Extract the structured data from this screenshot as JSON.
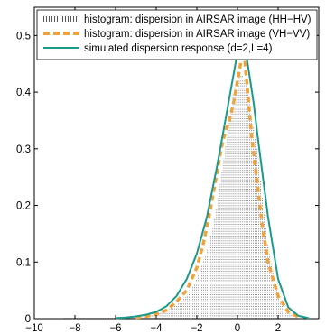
{
  "chart_data": {
    "type": "line",
    "xlim": [
      -10,
      4
    ],
    "ylim": [
      0,
      0.55
    ],
    "xticks": [
      -10,
      -8,
      -6,
      -4,
      -2,
      0,
      2
    ],
    "xtick_labels": [
      "−10",
      "−8",
      "−6",
      "−4",
      "−2",
      "0",
      "2"
    ],
    "yticks": [
      0,
      0.1,
      0.2,
      0.3,
      0.4,
      0.5
    ],
    "ytick_labels": [
      "0",
      "0.1",
      "0.2",
      "0.3",
      "0.4",
      "0.5"
    ],
    "grid": false,
    "legend_position": "top",
    "series": [
      {
        "name": "histogram: dispersion in AIRSAR image (HH−HV)",
        "style": "stems",
        "color": "#555555",
        "x": [
          -8.5,
          -8.0,
          -7.5,
          -7.0,
          -6.5,
          -6.0,
          -5.5,
          -5.0,
          -4.5,
          -4.0,
          -3.5,
          -3.0,
          -2.5,
          -2.0,
          -1.5,
          -1.2,
          -1.0,
          -0.8,
          -0.6,
          -0.4,
          -0.2,
          0.0,
          0.2,
          0.4,
          0.6,
          0.8,
          1.0,
          1.2,
          1.5,
          2.0,
          2.5,
          3.0
        ],
        "y": [
          0.002,
          0.002,
          0.002,
          0.002,
          0.003,
          0.003,
          0.004,
          0.005,
          0.007,
          0.01,
          0.015,
          0.025,
          0.04,
          0.07,
          0.12,
          0.16,
          0.2,
          0.25,
          0.3,
          0.35,
          0.4,
          0.43,
          0.43,
          0.42,
          0.38,
          0.33,
          0.29,
          0.22,
          0.13,
          0.04,
          0.01,
          0.003
        ]
      },
      {
        "name": "histogram: dispersion in AIRSAR image (VH−VV)",
        "style": "dashed",
        "color": "#f2a23c",
        "x": [
          -5.0,
          -4.5,
          -4.0,
          -3.5,
          -3.0,
          -2.5,
          -2.0,
          -1.7,
          -1.4,
          -1.1,
          -0.8,
          -0.6,
          -0.4,
          -0.2,
          0.0,
          0.1,
          0.2,
          0.3,
          0.4,
          0.5,
          0.7,
          0.9,
          1.2,
          1.5,
          2.0,
          2.5,
          3.0
        ],
        "y": [
          0.002,
          0.004,
          0.008,
          0.015,
          0.03,
          0.05,
          0.09,
          0.13,
          0.18,
          0.24,
          0.3,
          0.33,
          0.35,
          0.38,
          0.42,
          0.44,
          0.46,
          0.48,
          0.44,
          0.4,
          0.32,
          0.26,
          0.17,
          0.1,
          0.04,
          0.012,
          0.003
        ]
      },
      {
        "name": "simulated dispersion response (d=2,L=4)",
        "style": "solid",
        "color": "#1a9a8a",
        "x": [
          -6.0,
          -5.5,
          -5.0,
          -4.5,
          -4.0,
          -3.5,
          -3.0,
          -2.5,
          -2.0,
          -1.5,
          -1.0,
          -0.5,
          -0.2,
          0.0,
          0.1,
          0.2,
          0.3,
          0.5,
          0.8,
          1.0,
          1.5,
          2.0,
          2.5,
          3.0,
          3.5
        ],
        "y": [
          0.001,
          0.002,
          0.004,
          0.007,
          0.012,
          0.022,
          0.04,
          0.07,
          0.115,
          0.18,
          0.27,
          0.37,
          0.43,
          0.47,
          0.49,
          0.5,
          0.49,
          0.45,
          0.38,
          0.32,
          0.18,
          0.07,
          0.02,
          0.005,
          0.001
        ]
      }
    ]
  }
}
